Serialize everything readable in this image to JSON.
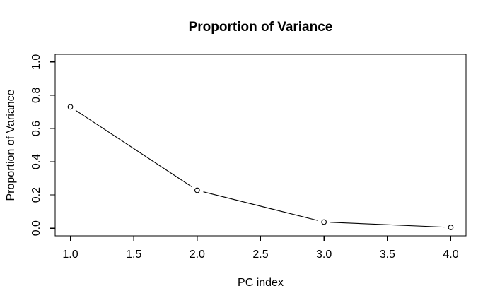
{
  "chart_data": {
    "type": "line",
    "title": "Proportion of Variance",
    "xlabel": "PC index",
    "ylabel": "Proportion of Variance",
    "x": [
      1,
      2,
      3,
      4
    ],
    "y": [
      0.73,
      0.228,
      0.037,
      0.005
    ],
    "marker": "open-circle",
    "line_style": "solid-segments-with-gaps-at-points",
    "xticks": [
      1.0,
      1.5,
      2.0,
      2.5,
      3.0,
      3.5,
      4.0
    ],
    "yticks": [
      0.0,
      0.2,
      0.4,
      0.6,
      0.8,
      1.0
    ],
    "xlim": [
      0.88,
      4.12
    ],
    "ylim": [
      -0.046,
      1.046
    ],
    "grid": false,
    "legend": false,
    "colors": {
      "foreground": "#000000",
      "background": "#ffffff"
    }
  }
}
